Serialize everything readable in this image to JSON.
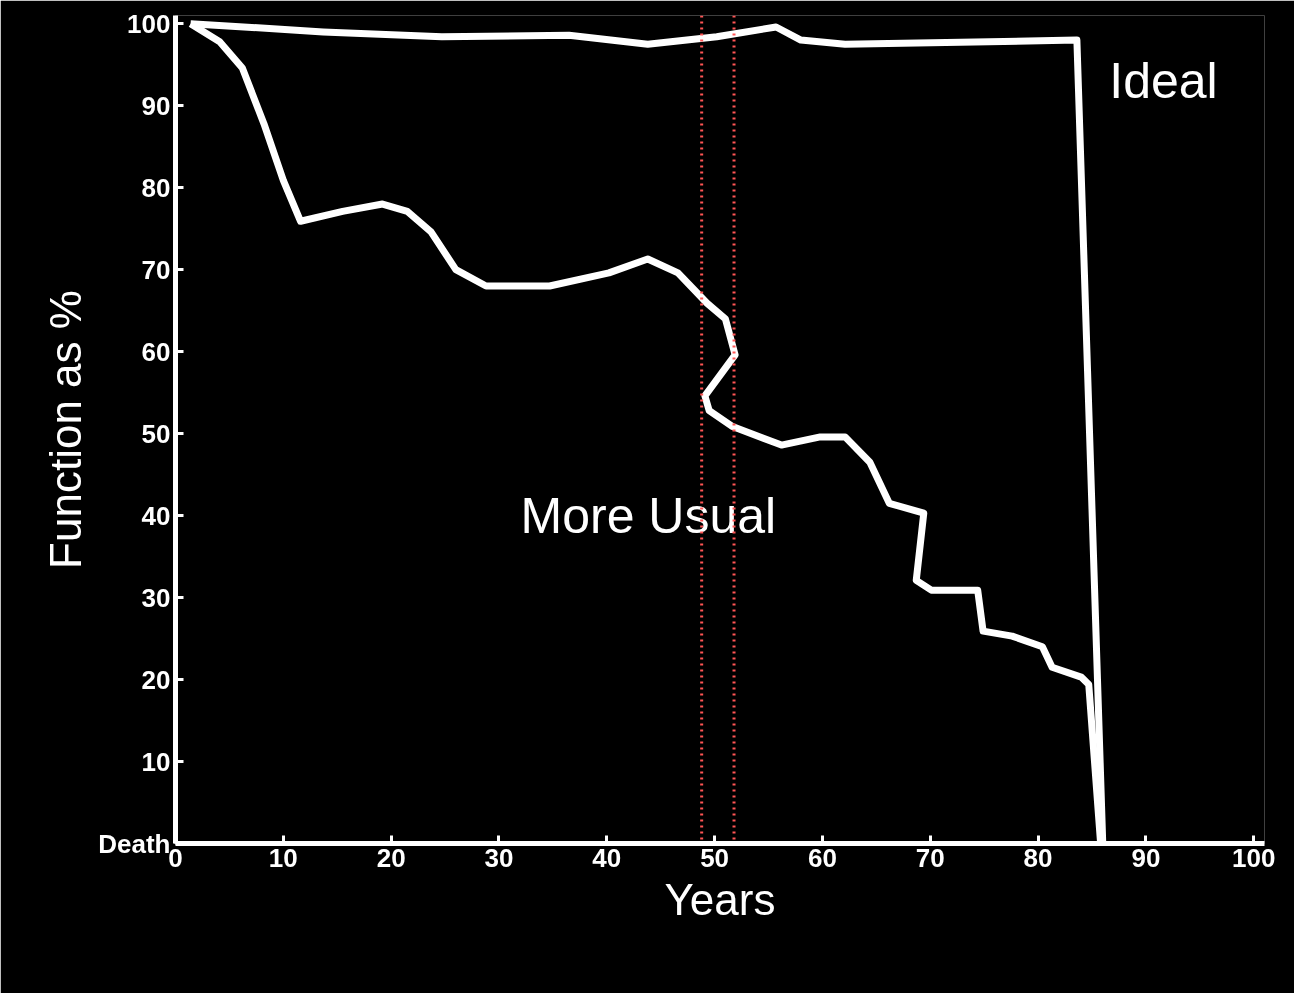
{
  "chart_data": {
    "type": "line",
    "xlabel": "Years",
    "ylabel": "Function as %",
    "xlim": [
      0,
      101
    ],
    "ylim": [
      0,
      101
    ],
    "xticks": [
      0,
      10,
      20,
      30,
      40,
      50,
      60,
      70,
      80,
      90,
      100
    ],
    "yticks": [
      {
        "value": 0,
        "label": "Death"
      },
      10,
      20,
      30,
      40,
      50,
      60,
      70,
      80,
      90,
      100
    ],
    "grid": false,
    "marker": "none",
    "line_style": "solid",
    "series": [
      {
        "name": "Ideal",
        "color": "#ffffff",
        "x": [
          1.4,
          13.7,
          24.7,
          36.5,
          43.8,
          50.2,
          55.7,
          58,
          62.1,
          83.6,
          86
        ],
        "values": [
          100,
          99,
          98.4,
          98.6,
          97.5,
          98.4,
          99.6,
          98,
          97.5,
          98,
          0
        ]
      },
      {
        "name": "More Usual",
        "color": "#ffffff",
        "x": [
          1.4,
          4.1,
          6.2,
          8.2,
          10,
          11.6,
          15.5,
          19.2,
          21.5,
          23.7,
          26,
          28.8,
          34.7,
          40.2,
          43.8,
          46.6,
          49.3,
          51,
          51.9,
          49.1,
          49.5,
          51.6,
          56.2,
          59.8,
          62.1,
          64.4,
          66.2,
          69.4,
          68.7,
          70.1,
          74.4,
          74.9,
          77.6,
          80.4,
          81.3,
          84,
          84.7,
          85.8
        ],
        "values": [
          100,
          97.8,
          94.6,
          87.8,
          80.9,
          75.9,
          77.1,
          78,
          77.1,
          74.6,
          70,
          68,
          68,
          69.6,
          71.3,
          69.6,
          65.9,
          64,
          59.6,
          54.6,
          52.8,
          50.9,
          48.6,
          49.6,
          49.6,
          46.5,
          41.5,
          40.3,
          32.1,
          30.9,
          30.9,
          25.9,
          25.3,
          24,
          21.5,
          20.3,
          19.4,
          0
        ]
      }
    ],
    "ref_lines": [
      {
        "axis": "x",
        "value": 48.8,
        "color": "#ff5555",
        "line_style": "dotted"
      },
      {
        "axis": "x",
        "value": 51.8,
        "color": "#ff5555",
        "line_style": "dotted"
      }
    ]
  }
}
